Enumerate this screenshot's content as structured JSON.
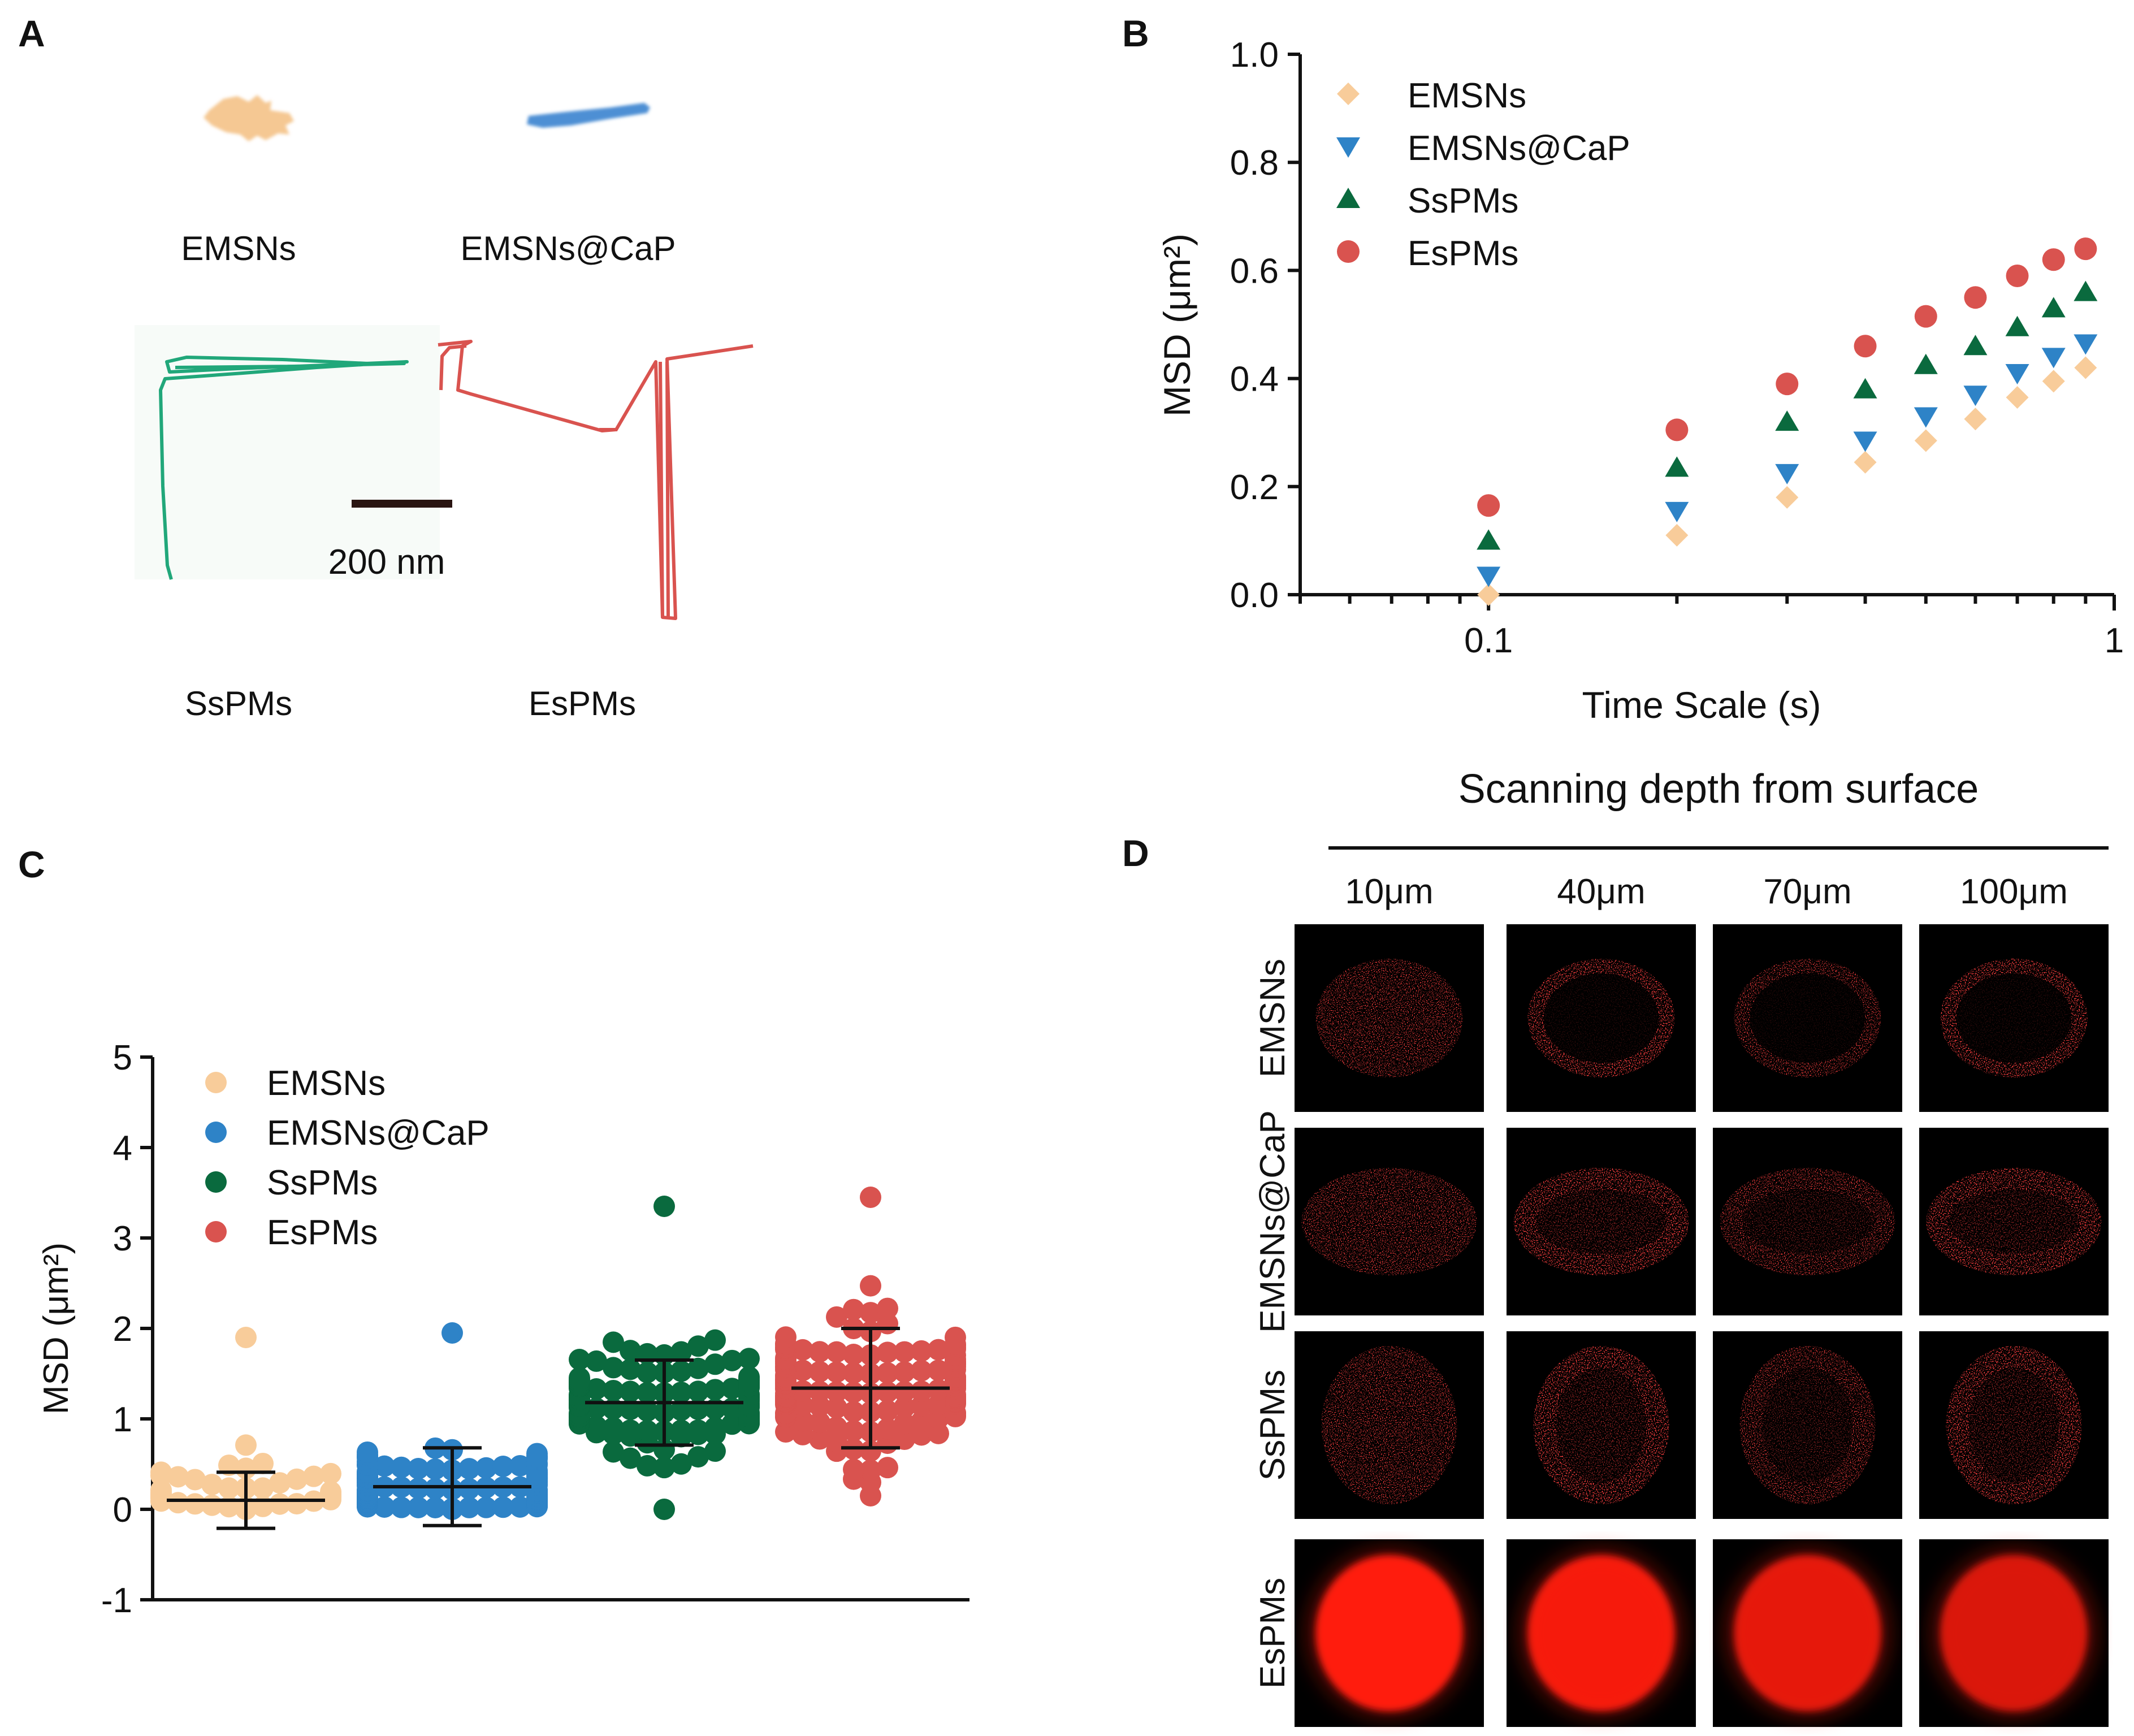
{
  "panels": {
    "A": {
      "label": "A",
      "traj_labels": [
        "EMSNs",
        "EMSNs@CaP",
        "SsPMs",
        "EsPMs"
      ],
      "scale_bar_label": "200 nm"
    },
    "B": {
      "label": "B"
    },
    "C": {
      "label": "C"
    },
    "D": {
      "label": "D",
      "title": "Scanning depth from surface",
      "depths": [
        "10μm",
        "40μm",
        "70μm",
        "100μm"
      ],
      "rows": [
        "EMSNs",
        "EMSNs@CaP",
        "SsPMs",
        "EsPMs"
      ]
    }
  },
  "colors": {
    "EMSNs": "#f8cc9a",
    "EMSNs@CaP": "#2e83c7",
    "SsPMs": "#0a6a3e",
    "EsPMs": "#d9534f",
    "ss_track": "#21a77a",
    "es_track": "#d9534f"
  },
  "chart_data": [
    {
      "panel": "B",
      "type": "scatter",
      "title": "",
      "xlabel": "Time Scale (s)",
      "ylabel": "MSD (μm²)",
      "xscale": "log",
      "xlim": [
        0.05,
        1
      ],
      "ylim": [
        0,
        1.0
      ],
      "xticks": [
        {
          "v": 0.1,
          "label": "0.1"
        },
        {
          "v": 1,
          "label": "1"
        }
      ],
      "yticks": [
        {
          "v": 0.0,
          "label": "0.0"
        },
        {
          "v": 0.2,
          "label": "0.2"
        },
        {
          "v": 0.4,
          "label": "0.4"
        },
        {
          "v": 0.6,
          "label": "0.6"
        },
        {
          "v": 0.8,
          "label": "0.8"
        },
        {
          "v": 1.0,
          "label": "1.0"
        }
      ],
      "x": [
        0.1,
        0.2,
        0.3,
        0.4,
        0.5,
        0.6,
        0.7,
        0.8,
        0.9
      ],
      "legend_position": "top-left",
      "series": [
        {
          "name": "EMSNs",
          "marker": "diamond",
          "values": [
            0.0,
            0.11,
            0.18,
            0.245,
            0.285,
            0.325,
            0.365,
            0.395,
            0.42
          ]
        },
        {
          "name": "EMSNs@CaP",
          "marker": "triangle-down",
          "values": [
            0.035,
            0.155,
            0.225,
            0.285,
            0.33,
            0.37,
            0.41,
            0.44,
            0.465
          ]
        },
        {
          "name": "SsPMs",
          "marker": "triangle-up",
          "values": [
            0.1,
            0.235,
            0.32,
            0.38,
            0.425,
            0.46,
            0.495,
            0.53,
            0.56
          ]
        },
        {
          "name": "EsPMs",
          "marker": "circle",
          "values": [
            0.165,
            0.305,
            0.39,
            0.46,
            0.515,
            0.55,
            0.59,
            0.62,
            0.64
          ]
        }
      ]
    },
    {
      "panel": "C",
      "type": "scatter",
      "title": "",
      "xlabel": "",
      "ylabel": "MSD (μm²)",
      "ylim": [
        -1,
        5
      ],
      "yticks": [
        {
          "v": -1,
          "label": "-1"
        },
        {
          "v": 0,
          "label": "0"
        },
        {
          "v": 1,
          "label": "1"
        },
        {
          "v": 2,
          "label": "2"
        },
        {
          "v": 3,
          "label": "3"
        },
        {
          "v": 4,
          "label": "4"
        },
        {
          "v": 5,
          "label": "5"
        }
      ],
      "legend_position": "top-left",
      "series": [
        {
          "name": "EMSNs",
          "mean": 0.1,
          "sd": 0.31,
          "n": 40,
          "max": 1.9,
          "min": 0.0
        },
        {
          "name": "EMSNs@CaP",
          "mean": 0.25,
          "sd": 0.43,
          "n": 130,
          "max": 1.95,
          "min": 0.0
        },
        {
          "name": "SsPMs",
          "mean": 1.18,
          "sd": 0.47,
          "n": 150,
          "max": 3.35,
          "min": 0.0
        },
        {
          "name": "EsPMs",
          "mean": 1.34,
          "sd": 0.66,
          "n": 150,
          "max": 3.45,
          "min": 0.15
        }
      ]
    }
  ]
}
